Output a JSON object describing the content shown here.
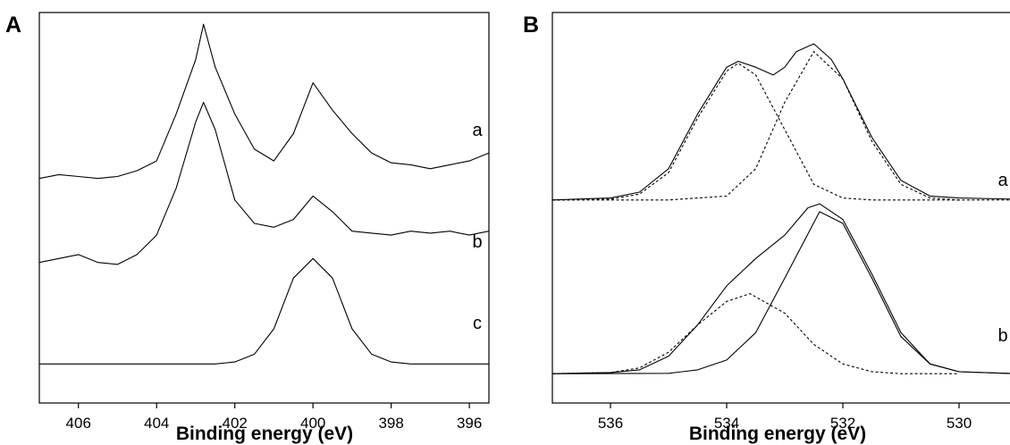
{
  "chart_data": [
    {
      "panel": "A",
      "type": "line",
      "xlabel": "Binding energy (eV)",
      "ylabel": "",
      "xlim": [
        407,
        395.5
      ],
      "x_ticks": [
        406,
        404,
        402,
        400,
        398,
        396
      ],
      "grid": false,
      "series": [
        {
          "name": "a",
          "style": "solid",
          "x": [
            407,
            406.5,
            406,
            405.5,
            405,
            404.5,
            404,
            403.5,
            403,
            402.8,
            402.5,
            402,
            401.5,
            401,
            400.5,
            400,
            399.5,
            399,
            398.5,
            398,
            397.5,
            397,
            396.5,
            396,
            395.5
          ],
          "y": [
            0.575,
            0.585,
            0.58,
            0.575,
            0.58,
            0.595,
            0.62,
            0.74,
            0.88,
            0.97,
            0.86,
            0.74,
            0.65,
            0.62,
            0.69,
            0.82,
            0.75,
            0.69,
            0.64,
            0.615,
            0.61,
            0.6,
            0.61,
            0.62,
            0.64
          ]
        },
        {
          "name": "b",
          "style": "solid",
          "x": [
            407,
            406.5,
            406,
            405.5,
            405,
            404.5,
            404,
            403.5,
            403,
            402.8,
            402.5,
            402,
            401.5,
            401,
            400.5,
            400,
            399.5,
            399,
            398.5,
            398,
            397.5,
            397,
            396.5,
            396,
            395.5
          ],
          "y": [
            0.36,
            0.37,
            0.38,
            0.36,
            0.355,
            0.38,
            0.43,
            0.55,
            0.72,
            0.77,
            0.7,
            0.52,
            0.46,
            0.45,
            0.47,
            0.53,
            0.49,
            0.44,
            0.435,
            0.43,
            0.44,
            0.435,
            0.44,
            0.43,
            0.44
          ]
        },
        {
          "name": "c",
          "style": "solid",
          "x": [
            407,
            406,
            405,
            404,
            403,
            402.5,
            402,
            401.5,
            401,
            400.5,
            400,
            399.5,
            399,
            398.5,
            398,
            397.5,
            397,
            396,
            395.5
          ],
          "y": [
            0.1,
            0.1,
            0.1,
            0.1,
            0.1,
            0.1,
            0.105,
            0.125,
            0.19,
            0.32,
            0.37,
            0.32,
            0.19,
            0.125,
            0.105,
            0.1,
            0.1,
            0.1,
            0.1
          ]
        }
      ],
      "labels": [
        "a",
        "b",
        "c"
      ]
    },
    {
      "panel": "B",
      "type": "line",
      "xlabel": "Binding energy (eV)",
      "ylabel": "",
      "xlim": [
        537,
        529
      ],
      "x_ticks": [
        536,
        534,
        532,
        530
      ],
      "grid": false,
      "series": [
        {
          "name": "a",
          "style": "solid",
          "x": [
            537,
            536,
            535.5,
            535,
            534.5,
            534,
            533.8,
            533.5,
            533.2,
            533,
            532.8,
            532.5,
            532.2,
            532,
            531.5,
            531,
            530.5,
            530,
            529
          ],
          "y": [
            0.52,
            0.525,
            0.54,
            0.6,
            0.74,
            0.86,
            0.875,
            0.86,
            0.84,
            0.86,
            0.9,
            0.92,
            0.88,
            0.83,
            0.68,
            0.57,
            0.53,
            0.525,
            0.522
          ]
        },
        {
          "name": "a-fit-1",
          "style": "dashed",
          "x": [
            537,
            536,
            535.5,
            535,
            534.5,
            534,
            533.8,
            533.5,
            533,
            532.5,
            532,
            531.5,
            531,
            530
          ],
          "y": [
            0.52,
            0.522,
            0.535,
            0.59,
            0.73,
            0.85,
            0.87,
            0.84,
            0.7,
            0.56,
            0.525,
            0.52,
            0.52,
            0.52
          ]
        },
        {
          "name": "a-fit-2",
          "style": "dashed",
          "x": [
            537,
            535,
            534,
            533.5,
            533,
            532.5,
            532,
            531.5,
            531,
            530.5,
            530,
            529
          ],
          "y": [
            0.52,
            0.52,
            0.53,
            0.6,
            0.77,
            0.9,
            0.83,
            0.67,
            0.56,
            0.525,
            0.52,
            0.52
          ]
        },
        {
          "name": "b",
          "style": "solid",
          "x": [
            537,
            536,
            535.5,
            535,
            534.5,
            534,
            533.5,
            533,
            532.6,
            532.4,
            532,
            531.5,
            531,
            530.5,
            530,
            529
          ],
          "y": [
            0.075,
            0.078,
            0.085,
            0.12,
            0.2,
            0.3,
            0.37,
            0.43,
            0.5,
            0.51,
            0.47,
            0.33,
            0.18,
            0.1,
            0.08,
            0.075
          ]
        },
        {
          "name": "b-fit-1",
          "style": "dashed",
          "x": [
            537,
            536,
            535.5,
            535,
            534.5,
            534,
            533.6,
            533,
            532.5,
            532,
            531.5,
            531,
            530
          ],
          "y": [
            0.075,
            0.078,
            0.09,
            0.13,
            0.2,
            0.26,
            0.28,
            0.23,
            0.15,
            0.1,
            0.08,
            0.075,
            0.075
          ]
        },
        {
          "name": "b-fit-2",
          "style": "solid",
          "x": [
            537,
            535,
            534.5,
            534,
            533.5,
            533,
            532.4,
            532,
            531.5,
            531,
            530.5,
            530,
            529
          ],
          "y": [
            0.075,
            0.076,
            0.085,
            0.11,
            0.18,
            0.32,
            0.49,
            0.46,
            0.32,
            0.17,
            0.1,
            0.08,
            0.075
          ]
        }
      ],
      "labels": [
        "a",
        "b"
      ]
    }
  ]
}
